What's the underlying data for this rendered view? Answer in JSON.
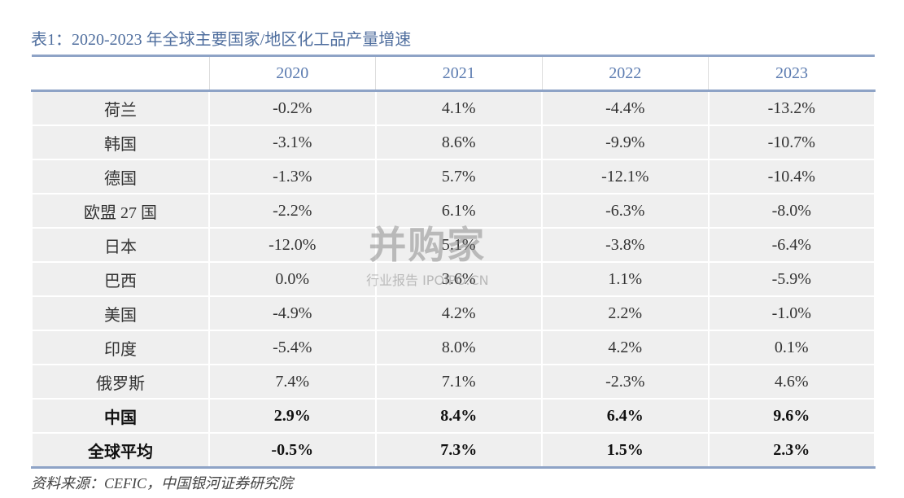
{
  "title": "表1：2020-2023 年全球主要国家/地区化工品产量增速",
  "table": {
    "columns": [
      "2020",
      "2021",
      "2022",
      "2023"
    ],
    "rows": [
      {
        "label": "荷兰",
        "values": [
          "-0.2%",
          "4.1%",
          "-4.4%",
          "-13.2%"
        ]
      },
      {
        "label": "韩国",
        "values": [
          "-3.1%",
          "8.6%",
          "-9.9%",
          "-10.7%"
        ]
      },
      {
        "label": "德国",
        "values": [
          "-1.3%",
          "5.7%",
          "-12.1%",
          "-10.4%"
        ]
      },
      {
        "label": "欧盟 27 国",
        "values": [
          "-2.2%",
          "6.1%",
          "-6.3%",
          "-8.0%"
        ]
      },
      {
        "label": "日本",
        "values": [
          "-12.0%",
          "5.1%",
          "-3.8%",
          "-6.4%"
        ]
      },
      {
        "label": "巴西",
        "values": [
          "0.0%",
          "3.6%",
          "1.1%",
          "-5.9%"
        ]
      },
      {
        "label": "美国",
        "values": [
          "-4.9%",
          "4.2%",
          "2.2%",
          "-1.0%"
        ]
      },
      {
        "label": "印度",
        "values": [
          "-5.4%",
          "8.0%",
          "4.2%",
          "0.1%"
        ]
      },
      {
        "label": "俄罗斯",
        "values": [
          "7.4%",
          "7.1%",
          "-2.3%",
          "4.6%"
        ]
      },
      {
        "label": "中国",
        "values": [
          "2.9%",
          "8.4%",
          "6.4%",
          "9.6%"
        ],
        "bold": true
      },
      {
        "label": "全球平均",
        "values": [
          "-0.5%",
          "7.3%",
          "1.5%",
          "2.3%"
        ],
        "bold": true
      }
    ]
  },
  "source": "资料来源：CEFIC，中国银河证券研究院",
  "watermark": {
    "title": "并购家",
    "subtitle": "行业报告 IPOIPO.CN"
  }
}
